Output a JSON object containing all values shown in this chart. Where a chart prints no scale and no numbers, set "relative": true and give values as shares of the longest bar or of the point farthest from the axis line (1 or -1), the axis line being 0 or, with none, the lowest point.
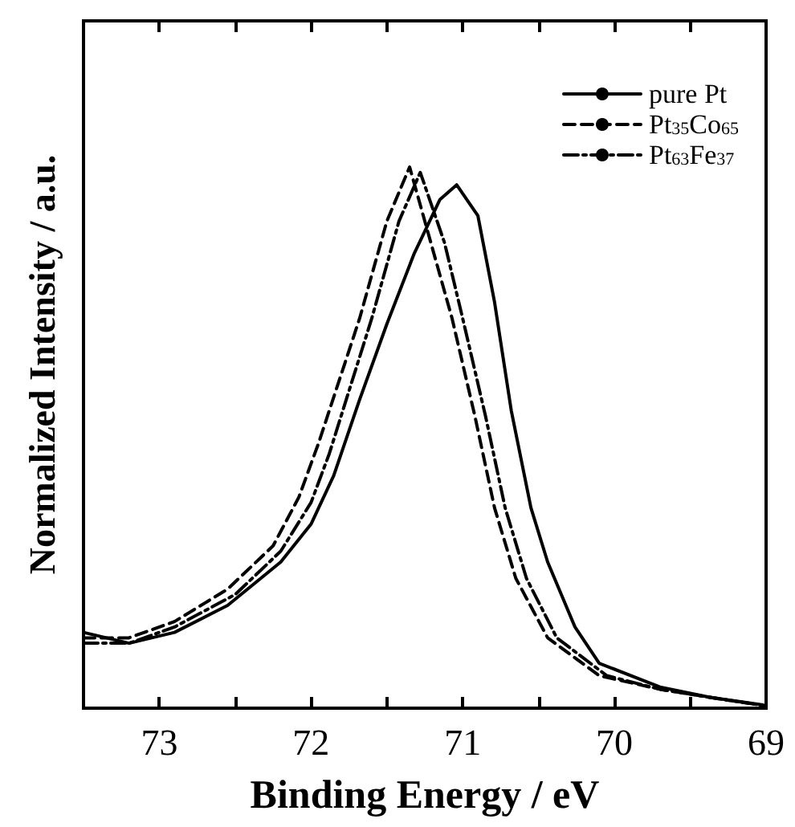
{
  "chart_data": {
    "type": "line",
    "xlabel": "Binding Energy / eV",
    "ylabel": "Normalized Intensity / a.u.",
    "relative": true,
    "xlim": [
      73.5,
      69
    ],
    "xticks": [
      73,
      {
        "value": 72.5,
        "label": null
      },
      72,
      {
        "value": 71.5,
        "label": null
      },
      71,
      {
        "value": 70.5,
        "label": null
      },
      70,
      {
        "value": 69.5,
        "label": null
      },
      69
    ],
    "legend": "top right",
    "grid": false,
    "marker": "none",
    "series": [
      {
        "name": "pure Pt",
        "color": "#000000",
        "line_style": "solid",
        "x": [
          73.5,
          73.2,
          72.9,
          72.55,
          72.2,
          72.0,
          71.85,
          71.68,
          71.5,
          71.32,
          71.15,
          71.04,
          70.9,
          70.79,
          70.68,
          70.55,
          70.44,
          70.26,
          70.1,
          69.7,
          69.37,
          69.02
        ],
        "values": [
          0.14,
          0.12,
          0.14,
          0.19,
          0.27,
          0.34,
          0.43,
          0.57,
          0.71,
          0.84,
          0.94,
          0.967,
          0.91,
          0.75,
          0.55,
          0.37,
          0.27,
          0.15,
          0.083,
          0.039,
          0.02,
          0.006
        ]
      },
      {
        "name": "Pt$_{35}$Co$_{65}$",
        "color": "#000000",
        "line_style": "dashed",
        "x": [
          73.5,
          73.2,
          72.9,
          72.55,
          72.25,
          72.08,
          71.95,
          71.68,
          71.5,
          71.35,
          71.2,
          71.07,
          70.92,
          70.79,
          70.65,
          70.44,
          70.1,
          69.7,
          69.37,
          69.02
        ],
        "values": [
          0.13,
          0.13,
          0.16,
          0.22,
          0.3,
          0.39,
          0.49,
          0.72,
          0.9,
          1.0,
          0.85,
          0.72,
          0.54,
          0.37,
          0.24,
          0.13,
          0.06,
          0.035,
          0.02,
          0.005
        ]
      },
      {
        "name": "Pt$_{63}$Fe$_{37}$",
        "color": "#000000",
        "line_style": "dashdot",
        "x": [
          73.5,
          73.2,
          72.9,
          72.5,
          72.2,
          72.0,
          71.88,
          71.6,
          71.42,
          71.28,
          71.12,
          71.0,
          70.85,
          70.72,
          70.58,
          70.38,
          70.05,
          69.7,
          69.37,
          69.02
        ],
        "values": [
          0.12,
          0.12,
          0.15,
          0.21,
          0.29,
          0.38,
          0.47,
          0.72,
          0.9,
          0.99,
          0.86,
          0.72,
          0.54,
          0.37,
          0.24,
          0.13,
          0.06,
          0.035,
          0.02,
          0.005
        ]
      }
    ]
  }
}
